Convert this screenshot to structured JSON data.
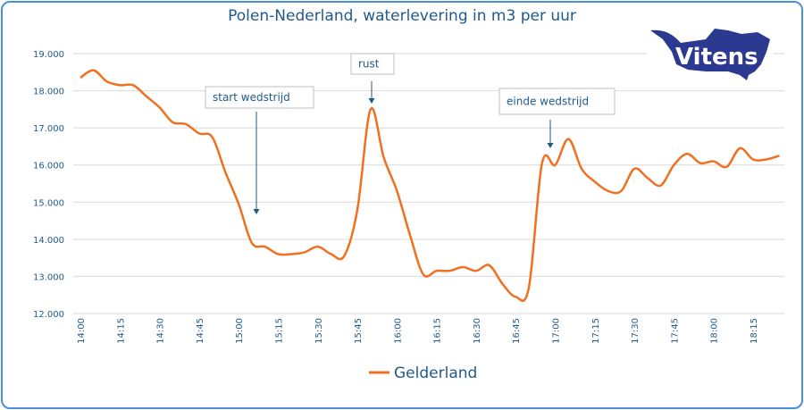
{
  "chart_data": {
    "type": "line",
    "title": "Polen-Nederland, waterlevering in m3 per uur",
    "xlabel": "",
    "ylabel": "",
    "ylim": [
      12000,
      19000
    ],
    "yticks": [
      "12.000",
      "13.000",
      "14.000",
      "15.000",
      "16.000",
      "17.000",
      "18.000",
      "19.000"
    ],
    "xticks": [
      "14:00",
      "14:15",
      "14:30",
      "14:45",
      "15:00",
      "15:15",
      "15:30",
      "15:45",
      "16:00",
      "16:15",
      "16:30",
      "16:45",
      "17:00",
      "17:15",
      "17:30",
      "17:45",
      "18:00",
      "18:15"
    ],
    "grid": true,
    "legend_position": "bottom",
    "series": [
      {
        "name": "Gelderland",
        "color": "#f07022",
        "x": [
          "14:00",
          "14:05",
          "14:10",
          "14:15",
          "14:20",
          "14:25",
          "14:30",
          "14:35",
          "14:40",
          "14:45",
          "14:50",
          "14:55",
          "15:00",
          "15:05",
          "15:10",
          "15:15",
          "15:20",
          "15:25",
          "15:30",
          "15:35",
          "15:40",
          "15:45",
          "15:50",
          "15:55",
          "16:00",
          "16:05",
          "16:10",
          "16:15",
          "16:20",
          "16:25",
          "16:30",
          "16:35",
          "16:40",
          "16:45",
          "16:50",
          "16:55",
          "17:00",
          "17:05",
          "17:10",
          "17:15",
          "17:20",
          "17:25",
          "17:30",
          "17:35",
          "17:40",
          "17:45",
          "17:50",
          "17:55",
          "18:00",
          "18:05",
          "18:10",
          "18:15",
          "18:20",
          "18:25"
        ],
        "values": [
          18350,
          18550,
          18250,
          18150,
          18150,
          17850,
          17550,
          17150,
          17100,
          16850,
          16750,
          15800,
          14950,
          13900,
          13800,
          13600,
          13600,
          13650,
          13800,
          13600,
          13550,
          14800,
          17500,
          16200,
          15300,
          14100,
          13050,
          13150,
          13150,
          13250,
          13150,
          13300,
          12800,
          12450,
          12700,
          16050,
          16000,
          16700,
          15900,
          15550,
          15300,
          15300,
          15900,
          15650,
          15450,
          16000,
          16300,
          16050,
          16100,
          15950,
          16450,
          16150,
          16150,
          16250
        ]
      }
    ],
    "annotations": [
      {
        "text": "start wedstrijd",
        "x": "15:10"
      },
      {
        "text": "rust",
        "x": "15:50"
      },
      {
        "text": "einde wedstrijd",
        "x": "17:00"
      }
    ]
  },
  "logo": {
    "text": "Vitens",
    "color": "#2b3990"
  },
  "frame_color": "#4a90d9"
}
